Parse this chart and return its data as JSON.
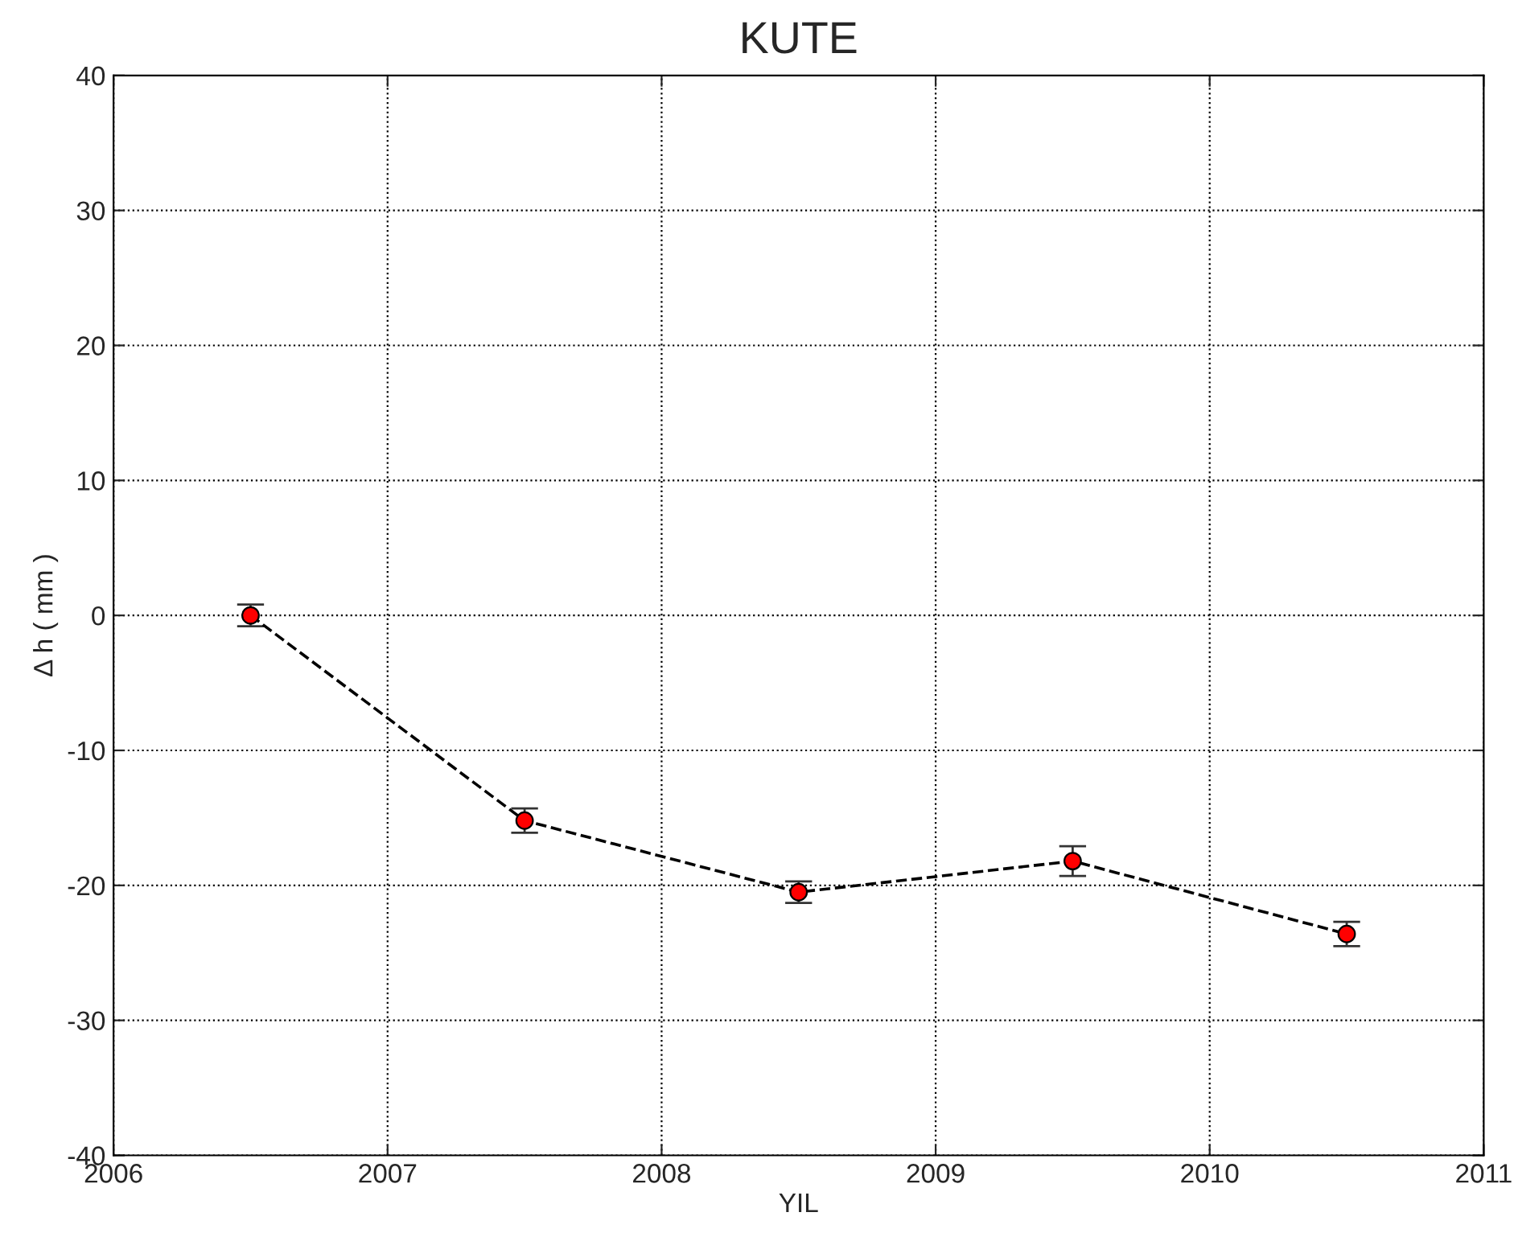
{
  "chart_data": {
    "type": "line",
    "title": "KUTE",
    "xlabel": "YIL",
    "ylabel": "Δ h ( mm )",
    "x": [
      2006.5,
      2007.5,
      2008.5,
      2009.5,
      2010.5
    ],
    "series": [
      {
        "color": "#ff0000",
        "values": [
          0,
          -15.2,
          -20.5,
          -18.2,
          -23.6
        ],
        "errors": [
          0.8,
          0.9,
          0.8,
          1.1,
          0.9
        ]
      }
    ],
    "xlim": [
      2006,
      2011
    ],
    "xticks": [
      2006,
      2007,
      2008,
      2009,
      2010,
      2011
    ],
    "ylim": [
      -40,
      40
    ],
    "yticks": [
      -40,
      -30,
      -20,
      -10,
      0,
      10,
      20,
      30,
      40
    ],
    "grid": true,
    "marker": "circle",
    "line_style": "dashed"
  }
}
